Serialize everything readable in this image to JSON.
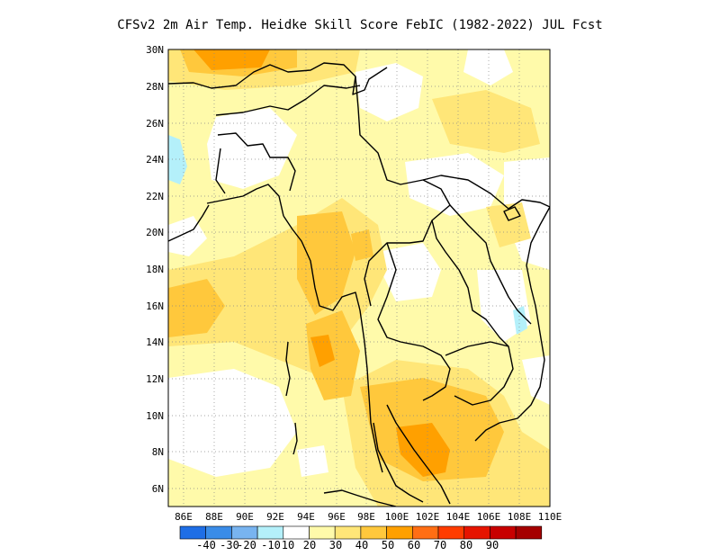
{
  "title": "CFSv2  2m Air Temp. Heidke Skill Score FebIC (1982-2022) JUL Fcst",
  "lat_ticks": [
    "30N",
    "28N",
    "26N",
    "24N",
    "22N",
    "20N",
    "18N",
    "16N",
    "14N",
    "12N",
    "10N",
    "8N",
    "6N"
  ],
  "lon_ticks": [
    "86E",
    "88E",
    "90E",
    "92E",
    "94E",
    "96E",
    "98E",
    "100E",
    "102E",
    "104E",
    "106E",
    "108E",
    "110E"
  ],
  "colorbar": {
    "labels": [
      "-40",
      "-30",
      "-20",
      "-10",
      "10",
      "20",
      "30",
      "40",
      "50",
      "60",
      "70",
      "80",
      "90"
    ],
    "colors": [
      "#1e6ee6",
      "#3a8ce8",
      "#78b4f0",
      "#b4f0fa",
      "#ffffff",
      "#fffaaa",
      "#ffe678",
      "#ffc83c",
      "#ffa000",
      "#ff6e14",
      "#ff3c00",
      "#e61400",
      "#c80000",
      "#a50000"
    ]
  }
}
